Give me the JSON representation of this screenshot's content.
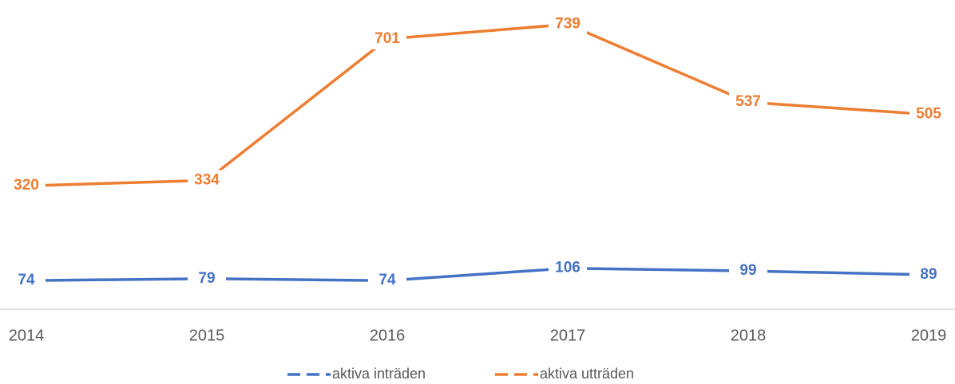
{
  "chart_data": {
    "type": "line",
    "categories": [
      "2014",
      "2015",
      "2016",
      "2017",
      "2018",
      "2019"
    ],
    "series": [
      {
        "name": "aktiva inträden",
        "color": "#4472c4",
        "values": [
          74,
          79,
          74,
          106,
          99,
          89
        ]
      },
      {
        "name": "aktiva utträden",
        "color": "#ed7d31",
        "values": [
          320,
          334,
          701,
          739,
          537,
          505
        ]
      }
    ],
    "ylim": [
      0,
      800
    ],
    "legend": "bottom"
  }
}
